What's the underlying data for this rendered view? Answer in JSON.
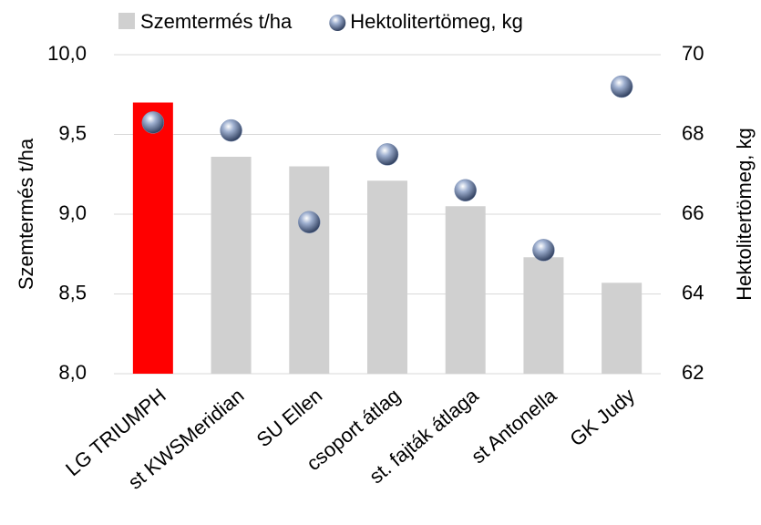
{
  "chart_data": {
    "type": "bar",
    "categories": [
      "LG TRIUMPH",
      "st KWSMeridian",
      "SU Ellen",
      "csoport átlag",
      "st. fajták átlaga",
      "st Antonella",
      "GK Judy"
    ],
    "series": [
      {
        "name": "Szemtermés t/ha",
        "type": "bar",
        "color": "#d0d0d0",
        "colors": [
          "#ff0000",
          "#d0d0d0",
          "#d0d0d0",
          "#d0d0d0",
          "#d0d0d0",
          "#d0d0d0",
          "#d0d0d0"
        ],
        "values": [
          9.7,
          9.36,
          9.3,
          9.21,
          9.05,
          8.73,
          8.57
        ]
      },
      {
        "name": "Hektolitertömeg, kg",
        "type": "scatter",
        "axis": "y2",
        "color": "#7f93b8",
        "values": [
          68.3,
          68.1,
          65.8,
          67.5,
          66.6,
          65.1,
          69.2
        ]
      }
    ],
    "y_label": "Szemtermés t/ha",
    "y2_label": "Hektolitertömeg, kg",
    "ylim": [
      8.0,
      10.0
    ],
    "yticks": [
      {
        "value": 8.0,
        "label": "8,0"
      },
      {
        "value": 8.5,
        "label": "8,5"
      },
      {
        "value": 9.0,
        "label": "9,0"
      },
      {
        "value": 9.5,
        "label": "9,5"
      },
      {
        "value": 10.0,
        "label": "10,0"
      }
    ],
    "y2lim": [
      62,
      70
    ],
    "y2ticks": [
      62,
      64,
      66,
      68,
      70
    ],
    "grid": true,
    "legend": "top"
  }
}
